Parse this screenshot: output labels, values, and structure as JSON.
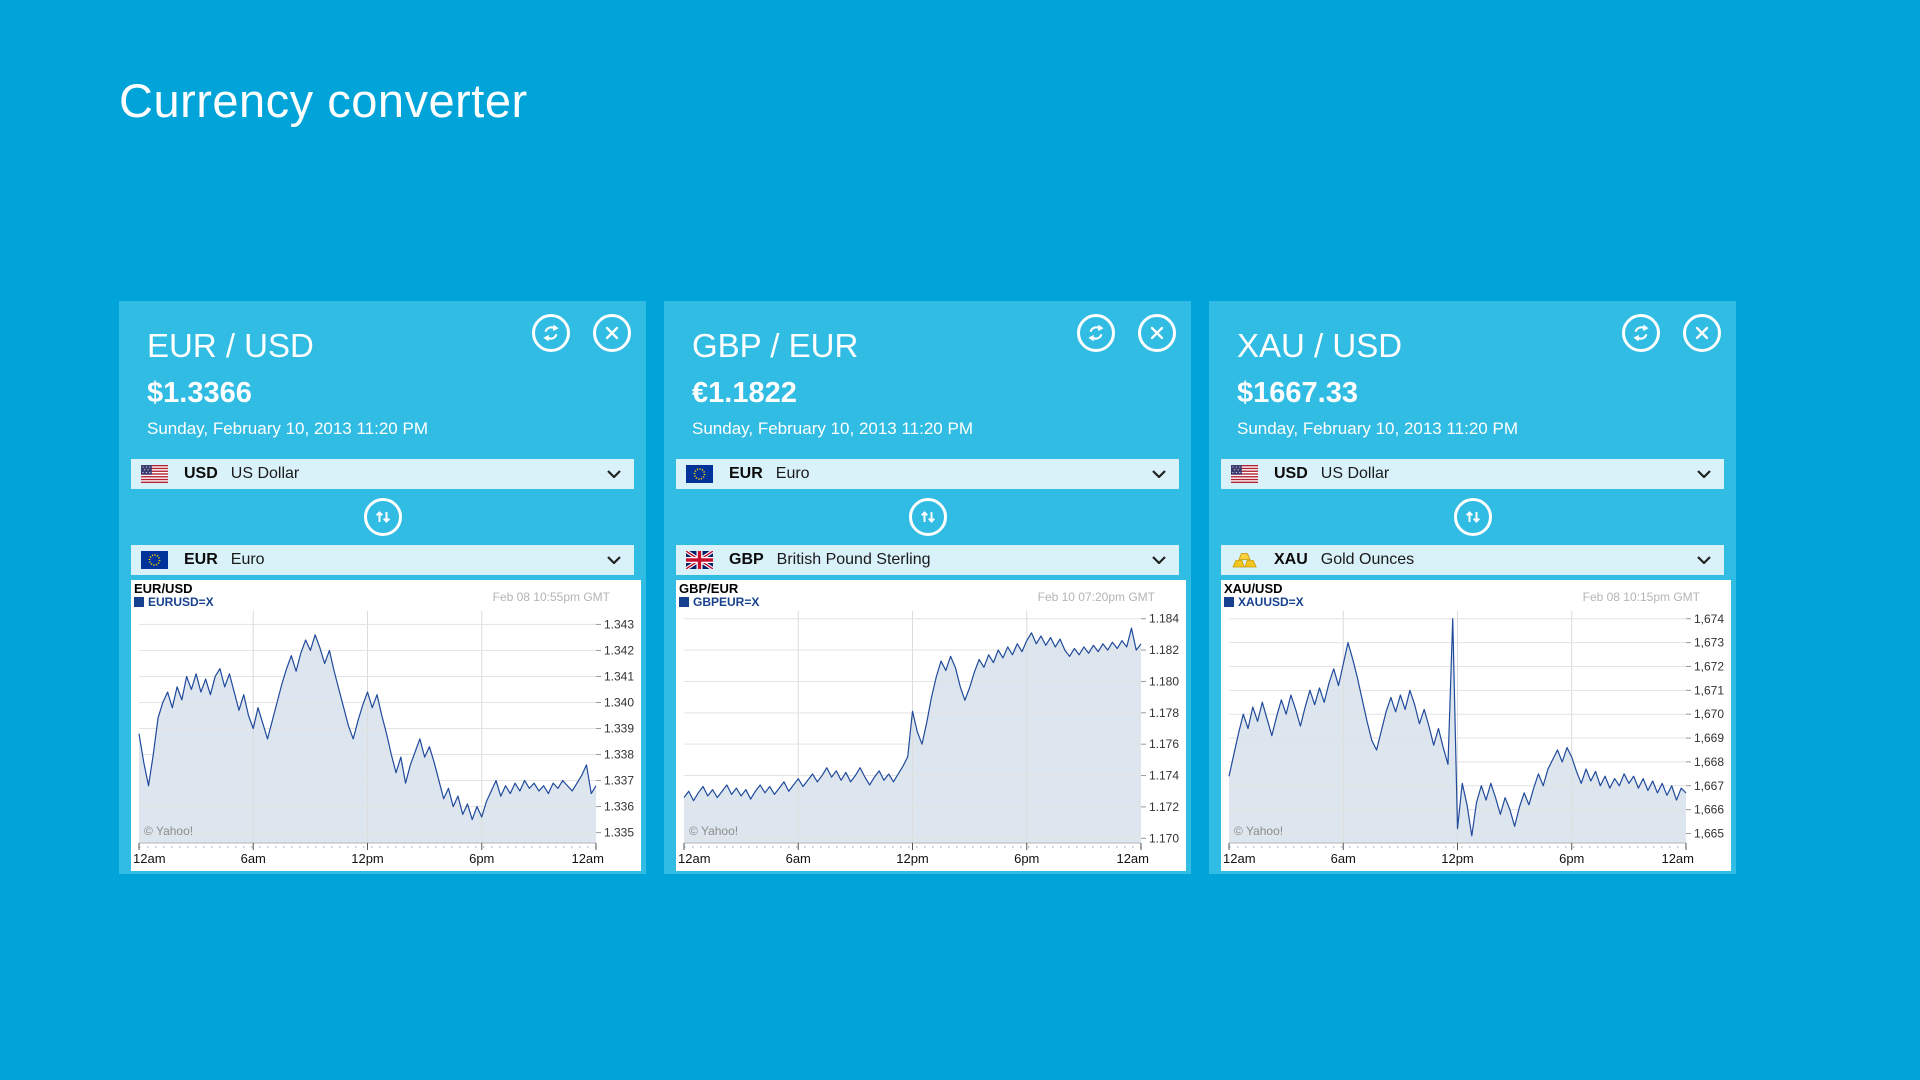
{
  "page": {
    "title": "Currency converter"
  },
  "colors": {
    "page_background": "#00a4d9",
    "card_background": "#31bce3",
    "dropdown_background": "#d9f1f9",
    "chart_line": "#204a9b",
    "chart_area_fill": "#dde6ef",
    "chart_legend": "#17418f"
  },
  "icons": {
    "refresh_icon": "circular-sync-arrows",
    "close_icon": "x-cross",
    "swap_icon": "up-down-arrows",
    "chevron_icon": "chevron-down",
    "flags": [
      "us-flag",
      "eu-flag",
      "gb-flag",
      "gold-bars"
    ]
  },
  "cards": [
    {
      "pair": "EUR / USD",
      "price": "$1.3366",
      "date": "Sunday, February 10, 2013 11:20 PM",
      "from_currency": {
        "code": "USD",
        "name": "US Dollar",
        "flag": "us-flag"
      },
      "to_currency": {
        "code": "EUR",
        "name": "Euro",
        "flag": "eu-flag"
      }
    },
    {
      "pair": "GBP / EUR",
      "price": "€1.1822",
      "date": "Sunday, February 10, 2013 11:20 PM",
      "from_currency": {
        "code": "EUR",
        "name": "Euro",
        "flag": "eu-flag"
      },
      "to_currency": {
        "code": "GBP",
        "name": "British Pound Sterling",
        "flag": "gb-flag"
      }
    },
    {
      "pair": "XAU / USD",
      "price": "$1667.33",
      "date": "Sunday, February 10, 2013 11:20 PM",
      "from_currency": {
        "code": "USD",
        "name": "US Dollar",
        "flag": "us-flag"
      },
      "to_currency": {
        "code": "XAU",
        "name": "Gold Ounces",
        "flag": "gold-bars"
      }
    }
  ],
  "chart_data": [
    {
      "type": "area",
      "title": "EUR/USD",
      "legend": "EURUSD=X",
      "timestamp": "Feb 08 10:55pm GMT",
      "watermark": "© Yahoo!",
      "x_labels": [
        "12am",
        "6am",
        "12pm",
        "6pm",
        "12am"
      ],
      "xlabel": "",
      "ylabel": "",
      "grid": true,
      "legend_position": "top-left",
      "ylim": [
        1.3346,
        1.3434
      ],
      "ytick_values": [
        1.335,
        1.336,
        1.337,
        1.338,
        1.339,
        1.34,
        1.341,
        1.342,
        1.343
      ],
      "ytick_labels": [
        "1.335",
        "1.336",
        "1.337",
        "1.338",
        "1.339",
        "1.340",
        "1.341",
        "1.342",
        "1.343"
      ],
      "values": [
        1.3388,
        1.3377,
        1.3368,
        1.338,
        1.3394,
        1.34,
        1.3404,
        1.3398,
        1.3406,
        1.3401,
        1.341,
        1.3405,
        1.3411,
        1.3404,
        1.3409,
        1.3403,
        1.341,
        1.3413,
        1.3406,
        1.3411,
        1.3404,
        1.3397,
        1.3403,
        1.3395,
        1.339,
        1.3398,
        1.3392,
        1.3386,
        1.3393,
        1.34,
        1.3407,
        1.3413,
        1.3418,
        1.3412,
        1.3419,
        1.3424,
        1.342,
        1.3426,
        1.3421,
        1.3415,
        1.342,
        1.3412,
        1.3405,
        1.3398,
        1.3391,
        1.3386,
        1.3393,
        1.3399,
        1.3404,
        1.3398,
        1.3403,
        1.3395,
        1.3388,
        1.338,
        1.3373,
        1.3379,
        1.3369,
        1.3376,
        1.3381,
        1.3386,
        1.3379,
        1.3383,
        1.3377,
        1.337,
        1.3363,
        1.3367,
        1.336,
        1.3364,
        1.3357,
        1.3361,
        1.3355,
        1.336,
        1.3356,
        1.3362,
        1.3366,
        1.337,
        1.3364,
        1.3368,
        1.3365,
        1.3369,
        1.3366,
        1.337,
        1.3367,
        1.3369,
        1.3366,
        1.3368,
        1.3365,
        1.3369,
        1.3367,
        1.337,
        1.3368,
        1.3366,
        1.3369,
        1.3372,
        1.3376,
        1.3365,
        1.3368
      ]
    },
    {
      "type": "area",
      "title": "GBP/EUR",
      "legend": "GBPEUR=X",
      "timestamp": "Feb 10 07:20pm GMT",
      "watermark": "© Yahoo!",
      "x_labels": [
        "12am",
        "6am",
        "12pm",
        "6pm",
        "12am"
      ],
      "xlabel": "",
      "ylabel": "",
      "grid": true,
      "legend_position": "top-left",
      "ylim": [
        1.1697,
        1.1843
      ],
      "ytick_values": [
        1.17,
        1.172,
        1.174,
        1.176,
        1.178,
        1.18,
        1.182,
        1.184
      ],
      "ytick_labels": [
        "1.170",
        "1.172",
        "1.174",
        "1.176",
        "1.178",
        "1.180",
        "1.182",
        "1.184"
      ],
      "values": [
        1.1726,
        1.173,
        1.1724,
        1.1729,
        1.1733,
        1.1727,
        1.1731,
        1.1726,
        1.173,
        1.1734,
        1.1728,
        1.1732,
        1.1727,
        1.1731,
        1.1725,
        1.173,
        1.1734,
        1.1729,
        1.1733,
        1.1728,
        1.1732,
        1.1736,
        1.173,
        1.1734,
        1.1738,
        1.1733,
        1.1737,
        1.1741,
        1.1736,
        1.174,
        1.1745,
        1.1739,
        1.1743,
        1.1737,
        1.1742,
        1.1736,
        1.174,
        1.1745,
        1.1739,
        1.1734,
        1.1739,
        1.1743,
        1.1737,
        1.1741,
        1.1736,
        1.1741,
        1.1746,
        1.1752,
        1.1781,
        1.1768,
        1.176,
        1.1774,
        1.179,
        1.1803,
        1.1813,
        1.1807,
        1.1816,
        1.1809,
        1.1797,
        1.1788,
        1.1796,
        1.1806,
        1.1814,
        1.1809,
        1.1817,
        1.1812,
        1.182,
        1.1815,
        1.1822,
        1.1817,
        1.1824,
        1.1819,
        1.1826,
        1.1831,
        1.1824,
        1.1829,
        1.1823,
        1.1828,
        1.1822,
        1.1827,
        1.182,
        1.1816,
        1.1821,
        1.1817,
        1.1822,
        1.1818,
        1.1823,
        1.1819,
        1.1824,
        1.182,
        1.1825,
        1.1821,
        1.1826,
        1.1822,
        1.1834,
        1.182,
        1.1824
      ]
    },
    {
      "type": "area",
      "title": "XAU/USD",
      "legend": "XAUUSD=X",
      "timestamp": "Feb 08 10:15pm GMT",
      "watermark": "© Yahoo!",
      "x_labels": [
        "12am",
        "6am",
        "12pm",
        "6pm",
        "12am"
      ],
      "xlabel": "",
      "ylabel": "",
      "grid": true,
      "legend_position": "top-left",
      "ylim": [
        1664.6,
        1674.2
      ],
      "ytick_values": [
        1665,
        1666,
        1667,
        1668,
        1669,
        1670,
        1671,
        1672,
        1673,
        1674
      ],
      "ytick_labels": [
        "1,665",
        "1,666",
        "1,667",
        "1,668",
        "1,669",
        "1,670",
        "1,671",
        "1,672",
        "1,673",
        "1,674"
      ],
      "values": [
        1667.4,
        1668.3,
        1669.2,
        1670.0,
        1669.4,
        1670.3,
        1669.7,
        1670.5,
        1669.8,
        1669.1,
        1669.9,
        1670.6,
        1670.0,
        1670.8,
        1670.2,
        1669.5,
        1670.3,
        1671.0,
        1670.4,
        1671.1,
        1670.5,
        1671.3,
        1671.9,
        1671.2,
        1672.1,
        1673.0,
        1672.3,
        1671.5,
        1670.6,
        1669.7,
        1668.9,
        1668.5,
        1669.3,
        1670.1,
        1670.7,
        1670.1,
        1670.8,
        1670.2,
        1671.0,
        1670.4,
        1669.6,
        1670.2,
        1669.5,
        1668.7,
        1669.4,
        1668.6,
        1667.9,
        1674.0,
        1665.2,
        1667.1,
        1666.2,
        1664.9,
        1666.3,
        1667.0,
        1666.4,
        1667.1,
        1666.5,
        1665.8,
        1666.5,
        1666.0,
        1665.3,
        1666.1,
        1666.7,
        1666.2,
        1666.9,
        1667.5,
        1667.0,
        1667.7,
        1668.1,
        1668.5,
        1668.0,
        1668.6,
        1668.2,
        1667.6,
        1667.1,
        1667.7,
        1667.2,
        1667.6,
        1667.0,
        1667.4,
        1666.9,
        1667.3,
        1667.0,
        1667.5,
        1667.1,
        1667.4,
        1666.9,
        1667.3,
        1666.8,
        1667.2,
        1666.7,
        1667.1,
        1666.6,
        1667.0,
        1666.4,
        1666.9,
        1666.7
      ]
    }
  ]
}
